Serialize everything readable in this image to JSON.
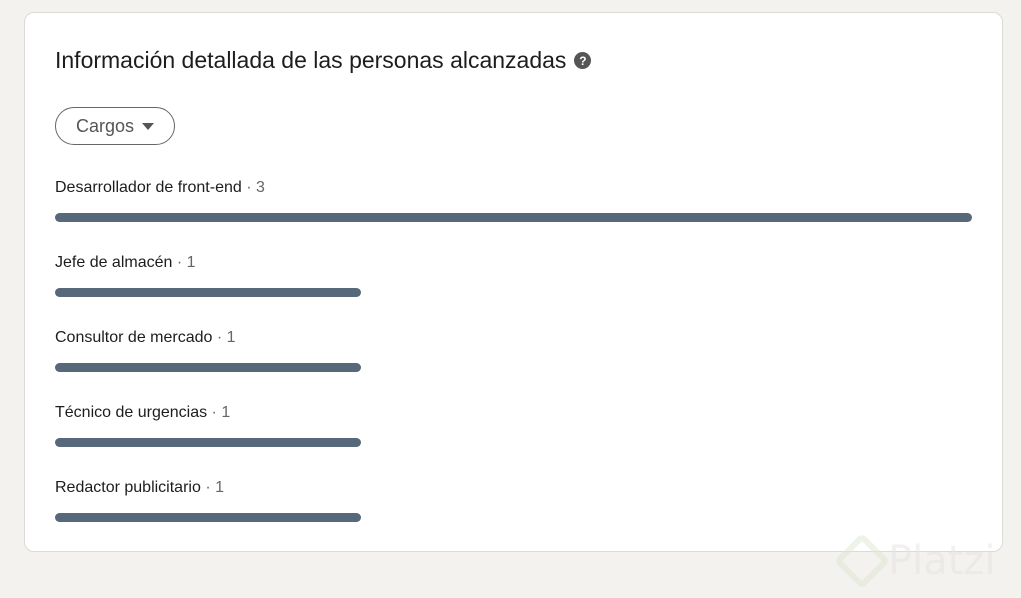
{
  "card": {
    "title": "Información detallada de las personas alcanzadas",
    "help_icon": "question-circle-icon",
    "filter": {
      "label": "Cargos",
      "icon": "caret-down-icon"
    }
  },
  "chart_data": {
    "type": "bar",
    "orientation": "horizontal",
    "categories": [
      "Desarrollador de front-end",
      "Jefe de almacén",
      "Consultor de mercado",
      "Técnico de urgencias",
      "Redactor publicitario"
    ],
    "values": [
      3,
      1,
      1,
      1,
      1
    ],
    "count_labels": [
      "· 3",
      "· 1",
      "· 1",
      "· 1",
      "· 1"
    ],
    "bar_color": "#56687a"
  },
  "watermark": {
    "text": "Platzi"
  }
}
